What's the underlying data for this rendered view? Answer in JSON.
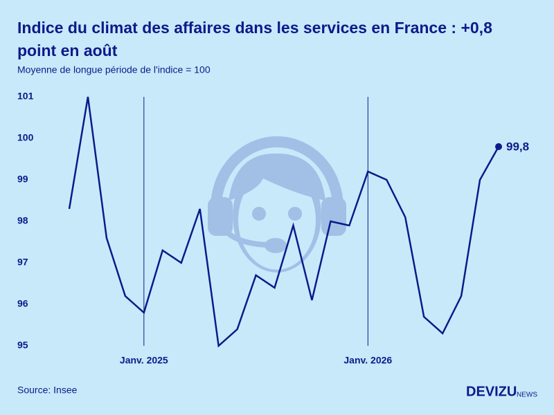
{
  "chart_data": {
    "type": "line",
    "title": "Indice du climat des affaires dans les services en France : +0,8",
    "title_line2": "point en août",
    "subtitle": "Moyenne de longue période de l'indice = 100",
    "source": "Source: Insee",
    "logo": "DEVIZU",
    "logo_suffix": "NEWS",
    "categories": [
      null,
      null,
      null,
      null,
      "Janv. 2025",
      null,
      null,
      null,
      null,
      null,
      null,
      null,
      null,
      null,
      null,
      null,
      "Janv. 2026",
      null,
      null,
      null,
      null,
      null,
      null,
      null
    ],
    "values": [
      98.3,
      101.0,
      97.6,
      96.2,
      95.8,
      97.3,
      97.0,
      98.3,
      95.0,
      95.4,
      96.7,
      96.4,
      97.9,
      96.1,
      98.0,
      97.9,
      99.2,
      99.0,
      98.1,
      95.7,
      95.3,
      96.2,
      99.0,
      99.8
    ],
    "value_labels": [
      null,
      null,
      null,
      null,
      null,
      null,
      null,
      null,
      null,
      null,
      null,
      null,
      null,
      null,
      null,
      null,
      null,
      null,
      null,
      null,
      null,
      null,
      null,
      "99,8"
    ],
    "color": "#0c1a8a",
    "ylim": [
      95,
      101
    ],
    "yticks": [
      95,
      96,
      97,
      98,
      99,
      100,
      101
    ],
    "grid": false
  }
}
